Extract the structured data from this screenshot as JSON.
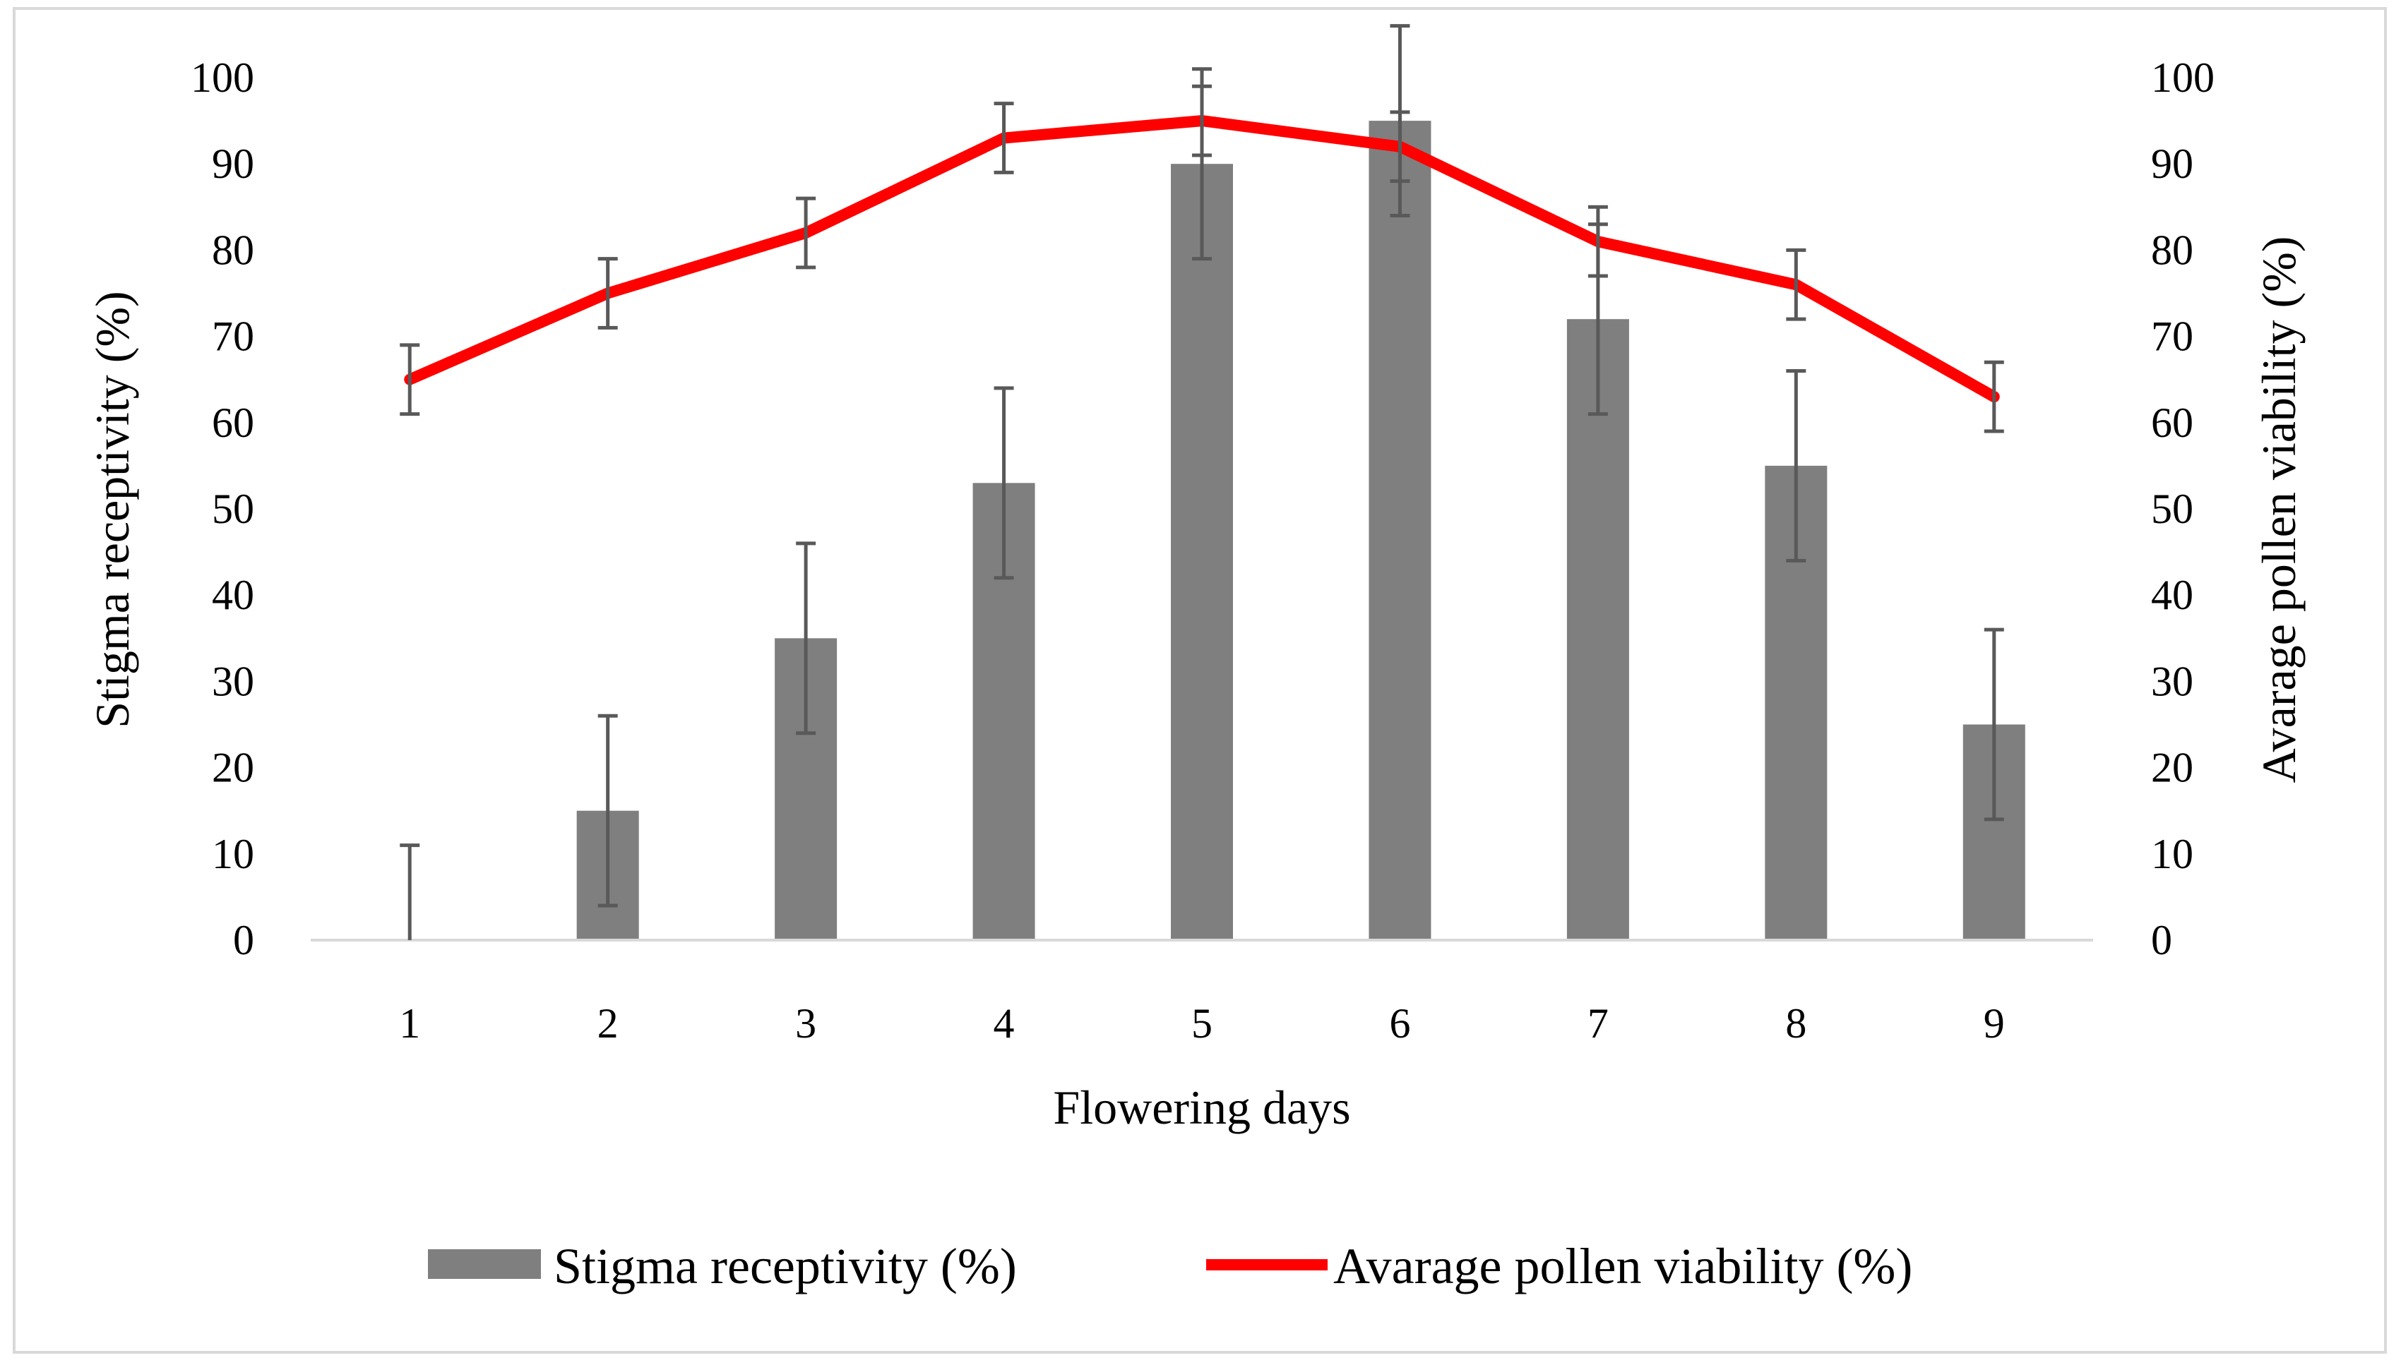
{
  "chart_data": {
    "type": "bar",
    "categories": [
      "1",
      "2",
      "3",
      "4",
      "5",
      "6",
      "7",
      "8",
      "9"
    ],
    "xlabel": "Flowering days",
    "ylabel": "Stigma receptivity (%)",
    "y2label": "Avarage pollen viability  (%)",
    "ylim": [
      0,
      100
    ],
    "y2lim": [
      0,
      100
    ],
    "yticks": [
      "0",
      "10",
      "20",
      "30",
      "40",
      "50",
      "60",
      "70",
      "80",
      "90",
      "100"
    ],
    "y2ticks": [
      "0",
      "10",
      "20",
      "30",
      "40",
      "50",
      "60",
      "70",
      "80",
      "90",
      "100"
    ],
    "grid": false,
    "legend_position": "bottom",
    "series": [
      {
        "name": "Stigma receptivity (%)",
        "type": "bar",
        "axis": "left",
        "color": "#7f7f7f",
        "values": [
          0,
          15,
          35,
          53,
          90,
          95,
          72,
          55,
          25
        ],
        "error": [
          11,
          11,
          11,
          11,
          11,
          11,
          11,
          11,
          11
        ]
      },
      {
        "name": "Avarage pollen viability (%)",
        "type": "line",
        "axis": "right",
        "color": "#ff0000",
        "values": [
          65,
          75,
          82,
          93,
          95,
          92,
          81,
          76,
          63
        ],
        "error": [
          4,
          4,
          4,
          4,
          4,
          4,
          4,
          4,
          4
        ]
      }
    ],
    "error_bar_color": "#595959",
    "axis_color": "#d9d9d9"
  }
}
